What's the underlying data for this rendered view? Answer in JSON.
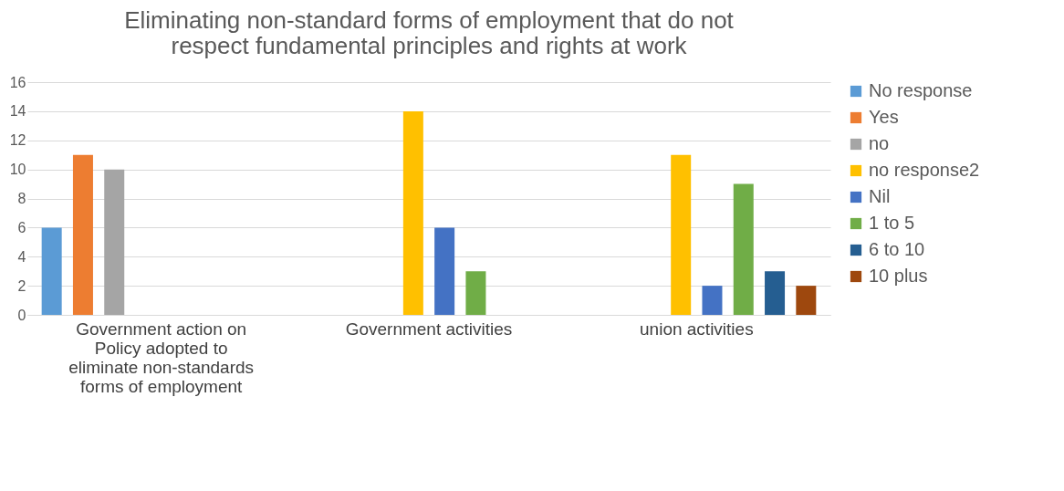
{
  "chart_data": {
    "type": "bar",
    "title": "Eliminating non-standard forms of employment that do not respect fundamental principles and rights at work",
    "categories": [
      "Government action on Policy adopted to eliminate non-standards forms of employment",
      "Government activities",
      "union activities"
    ],
    "series": [
      {
        "name": "No response",
        "color": "#5b9bd5",
        "values": [
          6,
          null,
          null
        ]
      },
      {
        "name": "Yes",
        "color": "#ed7d31",
        "values": [
          11,
          null,
          null
        ]
      },
      {
        "name": "no",
        "color": "#a5a5a5",
        "values": [
          10,
          null,
          null
        ]
      },
      {
        "name": "no response2",
        "color": "#ffc000",
        "values": [
          null,
          14,
          11
        ]
      },
      {
        "name": "Nil",
        "color": "#4472c4",
        "values": [
          null,
          6,
          2
        ]
      },
      {
        "name": "1 to 5",
        "color": "#70ad47",
        "values": [
          null,
          3,
          9
        ]
      },
      {
        "name": "6 to 10",
        "color": "#255e91",
        "values": [
          null,
          null,
          3
        ]
      },
      {
        "name": "10 plus",
        "color": "#9e480e",
        "values": [
          null,
          null,
          2
        ]
      }
    ],
    "ylim": [
      0,
      16
    ],
    "yticks": [
      0,
      2,
      4,
      6,
      8,
      10,
      12,
      14,
      16
    ],
    "grid": "y",
    "legend": "right"
  }
}
